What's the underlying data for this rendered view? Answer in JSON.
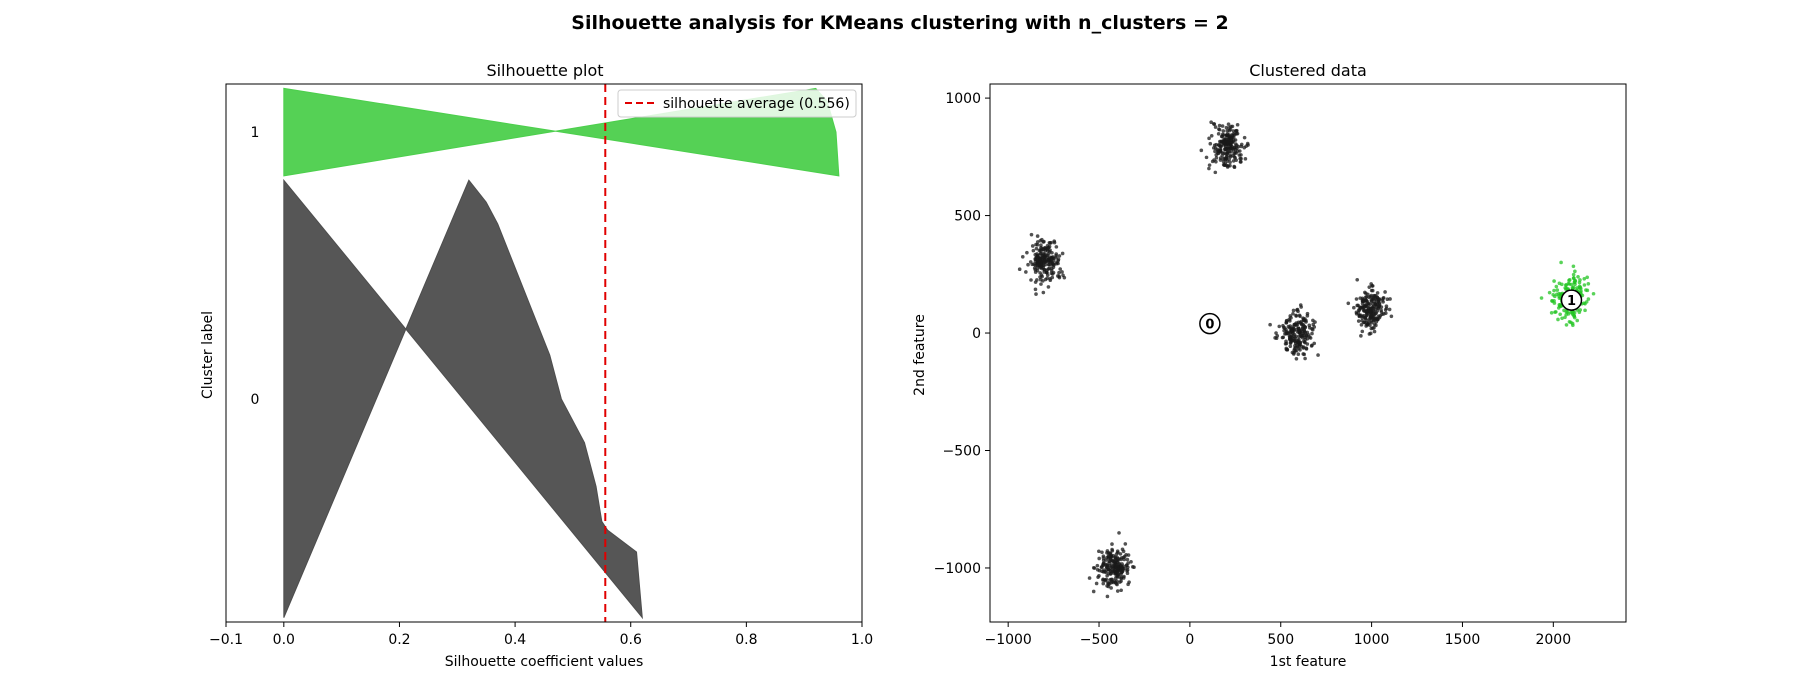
{
  "figure": {
    "suptitle": "Silhouette analysis for KMeans clustering with n_clusters = 2"
  },
  "chart_data": [
    {
      "type": "area",
      "title": "Silhouette plot",
      "xlabel": "Silhouette coefficient values",
      "ylabel": "Cluster label",
      "xlim": [
        -0.1,
        1.0
      ],
      "xticks": [
        "−0.1",
        "0.0",
        "0.2",
        "0.4",
        "0.6",
        "0.8",
        "1.0"
      ],
      "ylabels": [
        "1",
        "0"
      ],
      "silhouette_average": 0.556,
      "legend": {
        "label": "silhouette average (0.556)",
        "placement": "upper right"
      },
      "series": [
        {
          "name": "0",
          "color": "#4d4d4d",
          "size": 1000,
          "profile": [
            [
              0,
              0.62
            ],
            [
              0.15,
              0.61
            ],
            [
              0.2,
              0.56
            ],
            [
              0.22,
              0.55
            ],
            [
              0.3,
              0.54
            ],
            [
              0.4,
              0.52
            ],
            [
              0.5,
              0.48
            ],
            [
              0.6,
              0.46
            ],
            [
              0.7,
              0.43
            ],
            [
              0.8,
              0.4
            ],
            [
              0.9,
              0.37
            ],
            [
              0.95,
              0.35
            ],
            [
              1.0,
              0.32
            ]
          ]
        },
        {
          "name": "1",
          "color": "#4ccf4c",
          "size": 200,
          "profile": [
            [
              0,
              0.96
            ],
            [
              0.5,
              0.955
            ],
            [
              0.85,
              0.94
            ],
            [
              1.0,
              0.92
            ]
          ]
        }
      ]
    },
    {
      "type": "scatter",
      "title": "Clustered data",
      "xlabel": "1st feature",
      "ylabel": "2nd feature",
      "xlim": [
        -1100,
        2400
      ],
      "ylim": [
        -1230,
        1060
      ],
      "xticks": [
        "−1000",
        "−500",
        "0",
        "500",
        "1000",
        "1500",
        "2000"
      ],
      "yticks": [
        "1000",
        "500",
        "0",
        "−500",
        "−1000"
      ],
      "blobs": [
        {
          "cluster": "0",
          "color": "#1a1a1a",
          "center": [
            -800,
            300
          ],
          "spread": 45,
          "n": 200
        },
        {
          "cluster": "0",
          "color": "#1a1a1a",
          "center": [
            200,
            800
          ],
          "spread": 45,
          "n": 200
        },
        {
          "cluster": "0",
          "color": "#1a1a1a",
          "center": [
            -420,
            -1000
          ],
          "spread": 45,
          "n": 200
        },
        {
          "cluster": "0",
          "color": "#1a1a1a",
          "center": [
            590,
            0
          ],
          "spread": 45,
          "n": 200
        },
        {
          "cluster": "0",
          "color": "#1a1a1a",
          "center": [
            990,
            100
          ],
          "spread": 45,
          "n": 200
        },
        {
          "cluster": "1",
          "color": "#22c422",
          "center": [
            2100,
            150
          ],
          "spread": 45,
          "n": 200
        }
      ],
      "centers": [
        {
          "label": "0",
          "x": 110,
          "y": 40
        },
        {
          "label": "1",
          "x": 2100,
          "y": 140
        }
      ]
    }
  ]
}
